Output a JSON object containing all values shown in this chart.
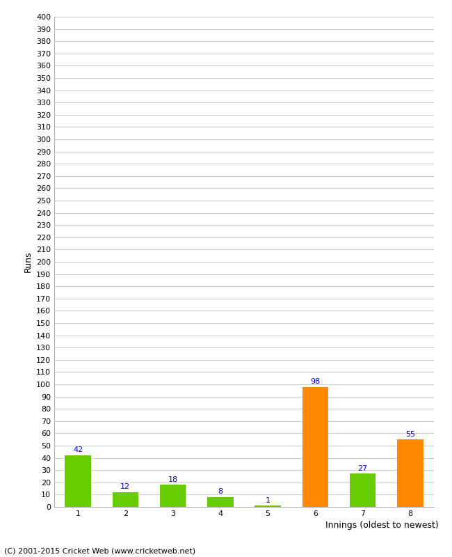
{
  "categories": [
    "1",
    "2",
    "3",
    "4",
    "5",
    "6",
    "7",
    "8"
  ],
  "values": [
    42,
    12,
    18,
    8,
    1,
    98,
    27,
    55
  ],
  "colors": [
    "#66cc00",
    "#66cc00",
    "#66cc00",
    "#66cc00",
    "#66cc00",
    "#ff8800",
    "#66cc00",
    "#ff8800"
  ],
  "xlabel": "Innings (oldest to newest)",
  "ylabel": "Runs",
  "ylim": [
    0,
    400
  ],
  "ytick_step": 10,
  "label_color": "#0000cc",
  "background_color": "#ffffff",
  "grid_color": "#cccccc",
  "footer": "(C) 2001-2015 Cricket Web (www.cricketweb.net)",
  "bar_width": 0.55,
  "label_fontsize": 8,
  "tick_fontsize": 8,
  "axis_label_fontsize": 9,
  "footer_fontsize": 8
}
